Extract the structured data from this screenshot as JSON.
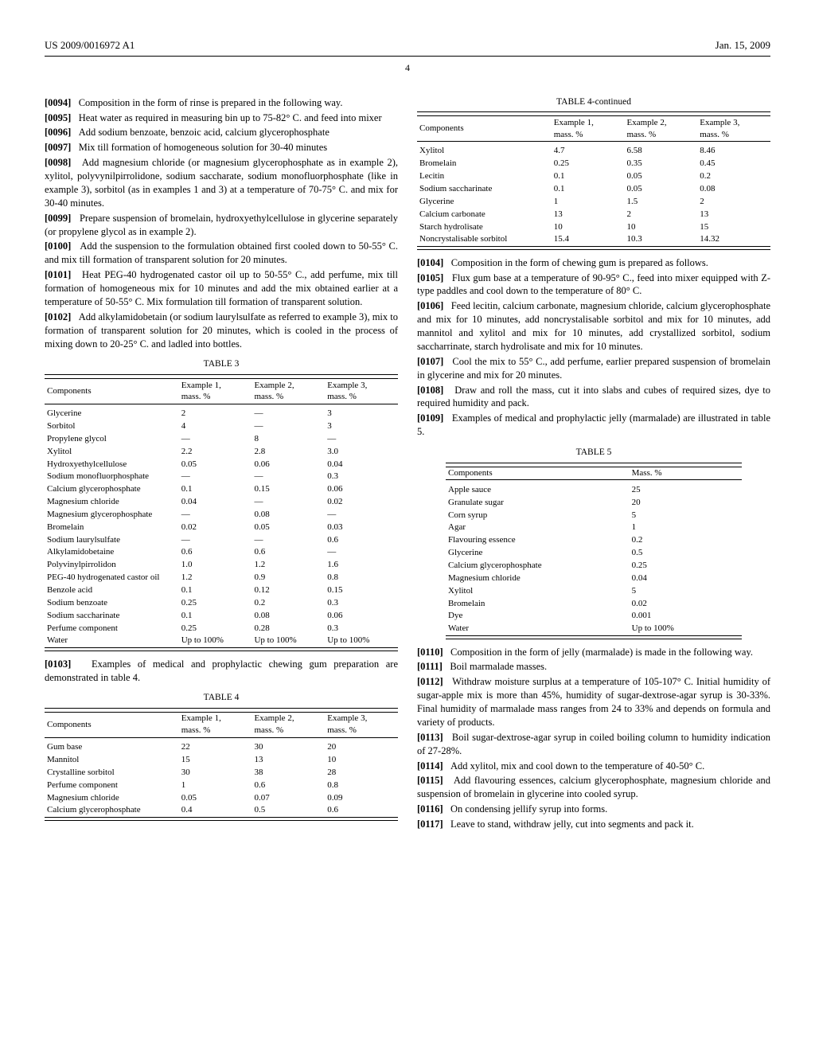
{
  "header": {
    "left": "US 2009/0016972 A1",
    "right": "Jan. 15, 2009"
  },
  "page_num": "4",
  "paras_left": [
    {
      "n": "[0094]",
      "t": "Composition in the form of rinse is prepared in the following way."
    },
    {
      "n": "[0095]",
      "t": "Heat water as required in measuring bin up to 75-82° C. and feed into mixer"
    },
    {
      "n": "[0096]",
      "t": "Add sodium benzoate, benzoic acid, calcium glycerophosphate"
    },
    {
      "n": "[0097]",
      "t": "Mix till formation of homogeneous solution for 30-40 minutes"
    },
    {
      "n": "[0098]",
      "t": "Add magnesium chloride (or magnesium glycerophosphate as in example 2), xylitol, polyvynilpirrolidone, sodium saccharate, sodium monofluorphosphate (like in example 3), sorbitol (as in examples 1 and 3) at a temperature of 70-75° C. and mix for 30-40 minutes."
    },
    {
      "n": "[0099]",
      "t": "Prepare suspension of bromelain, hydroxyethylcellulose in glycerine separately (or propylene glycol as in example 2)."
    },
    {
      "n": "[0100]",
      "t": "Add the suspension to the formulation obtained first cooled down to 50-55° C. and mix till formation of transparent solution for 20 minutes."
    },
    {
      "n": "[0101]",
      "t": "Heat PEG-40 hydrogenated castor oil up to 50-55° C., add perfume, mix till formation of homogeneous mix for 10 minutes and add the mix obtained earlier at a temperature of 50-55° C. Mix formulation till formation of transparent solution."
    },
    {
      "n": "[0102]",
      "t": "Add alkylamidobetain (or sodium laurylsulfate as referred to example 3), mix to formation of transparent solution for 20 minutes, which is cooled in the process of mixing down to 20-25° C. and ladled into bottles."
    }
  ],
  "table3": {
    "title": "TABLE 3",
    "head": [
      "Components",
      "Example 1, mass. %",
      "Example 2, mass. %",
      "Example 3, mass. %"
    ],
    "rows": [
      [
        "Glycerine",
        "2",
        "—",
        "3"
      ],
      [
        "Sorbitol",
        "4",
        "—",
        "3"
      ],
      [
        "Propylene glycol",
        "—",
        "8",
        "—"
      ],
      [
        "Xylitol",
        "2.2",
        "2.8",
        "3.0"
      ],
      [
        "Hydroxyethylcellulose",
        "0.05",
        "0.06",
        "0.04"
      ],
      [
        "Sodium monofluorphosphate",
        "—",
        "—",
        "0.3"
      ],
      [
        "Calcium glycerophosphate",
        "0.1",
        "0.15",
        "0.06"
      ],
      [
        "Magnesium chloride",
        "0.04",
        "—",
        "0.02"
      ],
      [
        "Magnesium glycerophosphate",
        "—",
        "0.08",
        "—"
      ],
      [
        "Bromelain",
        "0.02",
        "0.05",
        "0.03"
      ],
      [
        "Sodium laurylsulfate",
        "—",
        "—",
        "0.6"
      ],
      [
        "Alkylamidobetaine",
        "0.6",
        "0.6",
        "—"
      ],
      [
        "Polyvinylpirrolidon",
        "1.0",
        "1.2",
        "1.6"
      ],
      [
        "PEG-40 hydrogenated castor oil",
        "1.2",
        "0.9",
        "0.8"
      ],
      [
        "Benzole acid",
        "0.1",
        "0.12",
        "0.15"
      ],
      [
        "Sodium benzoate",
        "0.25",
        "0.2",
        "0.3"
      ],
      [
        "Sodium saccharinate",
        "0.1",
        "0.08",
        "0.06"
      ],
      [
        "Perfume component",
        "0.25",
        "0.28",
        "0.3"
      ],
      [
        "Water",
        "Up to 100%",
        "Up to 100%",
        "Up to 100%"
      ]
    ]
  },
  "para0103": {
    "n": "[0103]",
    "t": "Examples of medical and prophylactic chewing gum preparation are demonstrated in table 4."
  },
  "table4a": {
    "title": "TABLE 4",
    "head": [
      "Components",
      "Example 1, mass. %",
      "Example 2, mass. %",
      "Example 3, mass. %"
    ],
    "rows": [
      [
        "Gum base",
        "22",
        "30",
        "20"
      ],
      [
        "Mannitol",
        "15",
        "13",
        "10"
      ],
      [
        "Crystalline sorbitol",
        "30",
        "38",
        "28"
      ],
      [
        "Perfume component",
        "1",
        "0.6",
        "0.8"
      ],
      [
        "Magnesium chloride",
        "0.05",
        "0.07",
        "0.09"
      ],
      [
        "Calcium glycerophosphate",
        "0.4",
        "0.5",
        "0.6"
      ]
    ]
  },
  "table4b": {
    "title": "TABLE 4-continued",
    "head": [
      "Components",
      "Example 1, mass. %",
      "Example 2, mass. %",
      "Example 3, mass. %"
    ],
    "rows": [
      [
        "Xylitol",
        "4.7",
        "6.58",
        "8.46"
      ],
      [
        "Bromelain",
        "0.25",
        "0.35",
        "0.45"
      ],
      [
        "Lecitin",
        "0.1",
        "0.05",
        "0.2"
      ],
      [
        "Sodium saccharinate",
        "0.1",
        "0.05",
        "0.08"
      ],
      [
        "Glycerine",
        "1",
        "1.5",
        "2"
      ],
      [
        "Calcium carbonate",
        "13",
        "2",
        "13"
      ],
      [
        "Starch hydrolisate",
        "10",
        "10",
        "15"
      ],
      [
        "Noncrystalisable sorbitol",
        "15.4",
        "10.3",
        "14.32"
      ]
    ]
  },
  "paras_right1": [
    {
      "n": "[0104]",
      "t": "Composition in the form of chewing gum is prepared as follows."
    },
    {
      "n": "[0105]",
      "t": "Flux gum base at a temperature of 90-95° C., feed into mixer equipped with Z-type paddles and cool down to the temperature of 80° C."
    },
    {
      "n": "[0106]",
      "t": "Feed lecitin, calcium carbonate, magnesium chloride, calcium glycerophosphate and mix for 10 minutes, add noncrystalisable sorbitol and mix for 10 minutes, add mannitol and xylitol and mix for 10 minutes, add crystallized sorbitol, sodium saccharrinate, starch hydrolisate and mix for 10 minutes."
    },
    {
      "n": "[0107]",
      "t": "Cool the mix to 55° C., add perfume, earlier prepared suspension of bromelain in glycerine and mix for 20 minutes."
    },
    {
      "n": "[0108]",
      "t": "Draw and roll the mass, cut it into slabs and cubes of required sizes, dye to required humidity and pack."
    },
    {
      "n": "[0109]",
      "t": "Examples of medical and prophylactic jelly (marmalade) are illustrated in table 5."
    }
  ],
  "table5": {
    "title": "TABLE 5",
    "head": [
      "Components",
      "Mass. %"
    ],
    "rows": [
      [
        "Apple sauce",
        "25"
      ],
      [
        "Granulate sugar",
        "20"
      ],
      [
        "Corn syrup",
        "5"
      ],
      [
        "Agar",
        "1"
      ],
      [
        "Flavouring essence",
        "0.2"
      ],
      [
        "Glycerine",
        "0.5"
      ],
      [
        "Calcium glycerophosphate",
        "0.25"
      ],
      [
        "Magnesium chloride",
        "0.04"
      ],
      [
        "Xylitol",
        "5"
      ],
      [
        "Bromelain",
        "0.02"
      ],
      [
        "Dye",
        "0.001"
      ],
      [
        "Water",
        "Up to 100%"
      ]
    ]
  },
  "paras_right2": [
    {
      "n": "[0110]",
      "t": "Composition in the form of jelly (marmalade) is made in the following way."
    },
    {
      "n": "[0111]",
      "t": "Boil marmalade masses."
    },
    {
      "n": "[0112]",
      "t": "Withdraw moisture surplus at a temperature of 105-107° C. Initial humidity of sugar-apple mix is more than 45%, humidity of sugar-dextrose-agar syrup is 30-33%. Final humidity of marmalade mass ranges from 24 to 33% and depends on formula and variety of products."
    },
    {
      "n": "[0113]",
      "t": "Boil sugar-dextrose-agar syrup in coiled boiling column to humidity indication of 27-28%."
    },
    {
      "n": "[0114]",
      "t": "Add xylitol, mix and cool down to the temperature of 40-50° C."
    },
    {
      "n": "[0115]",
      "t": "Add flavouring essences, calcium glycerophosphate, magnesium chloride and suspension of bromelain in glycerine into cooled syrup."
    },
    {
      "n": "[0116]",
      "t": "On condensing jellify syrup into forms."
    },
    {
      "n": "[0117]",
      "t": "Leave to stand, withdraw jelly, cut into segments and pack it."
    }
  ]
}
